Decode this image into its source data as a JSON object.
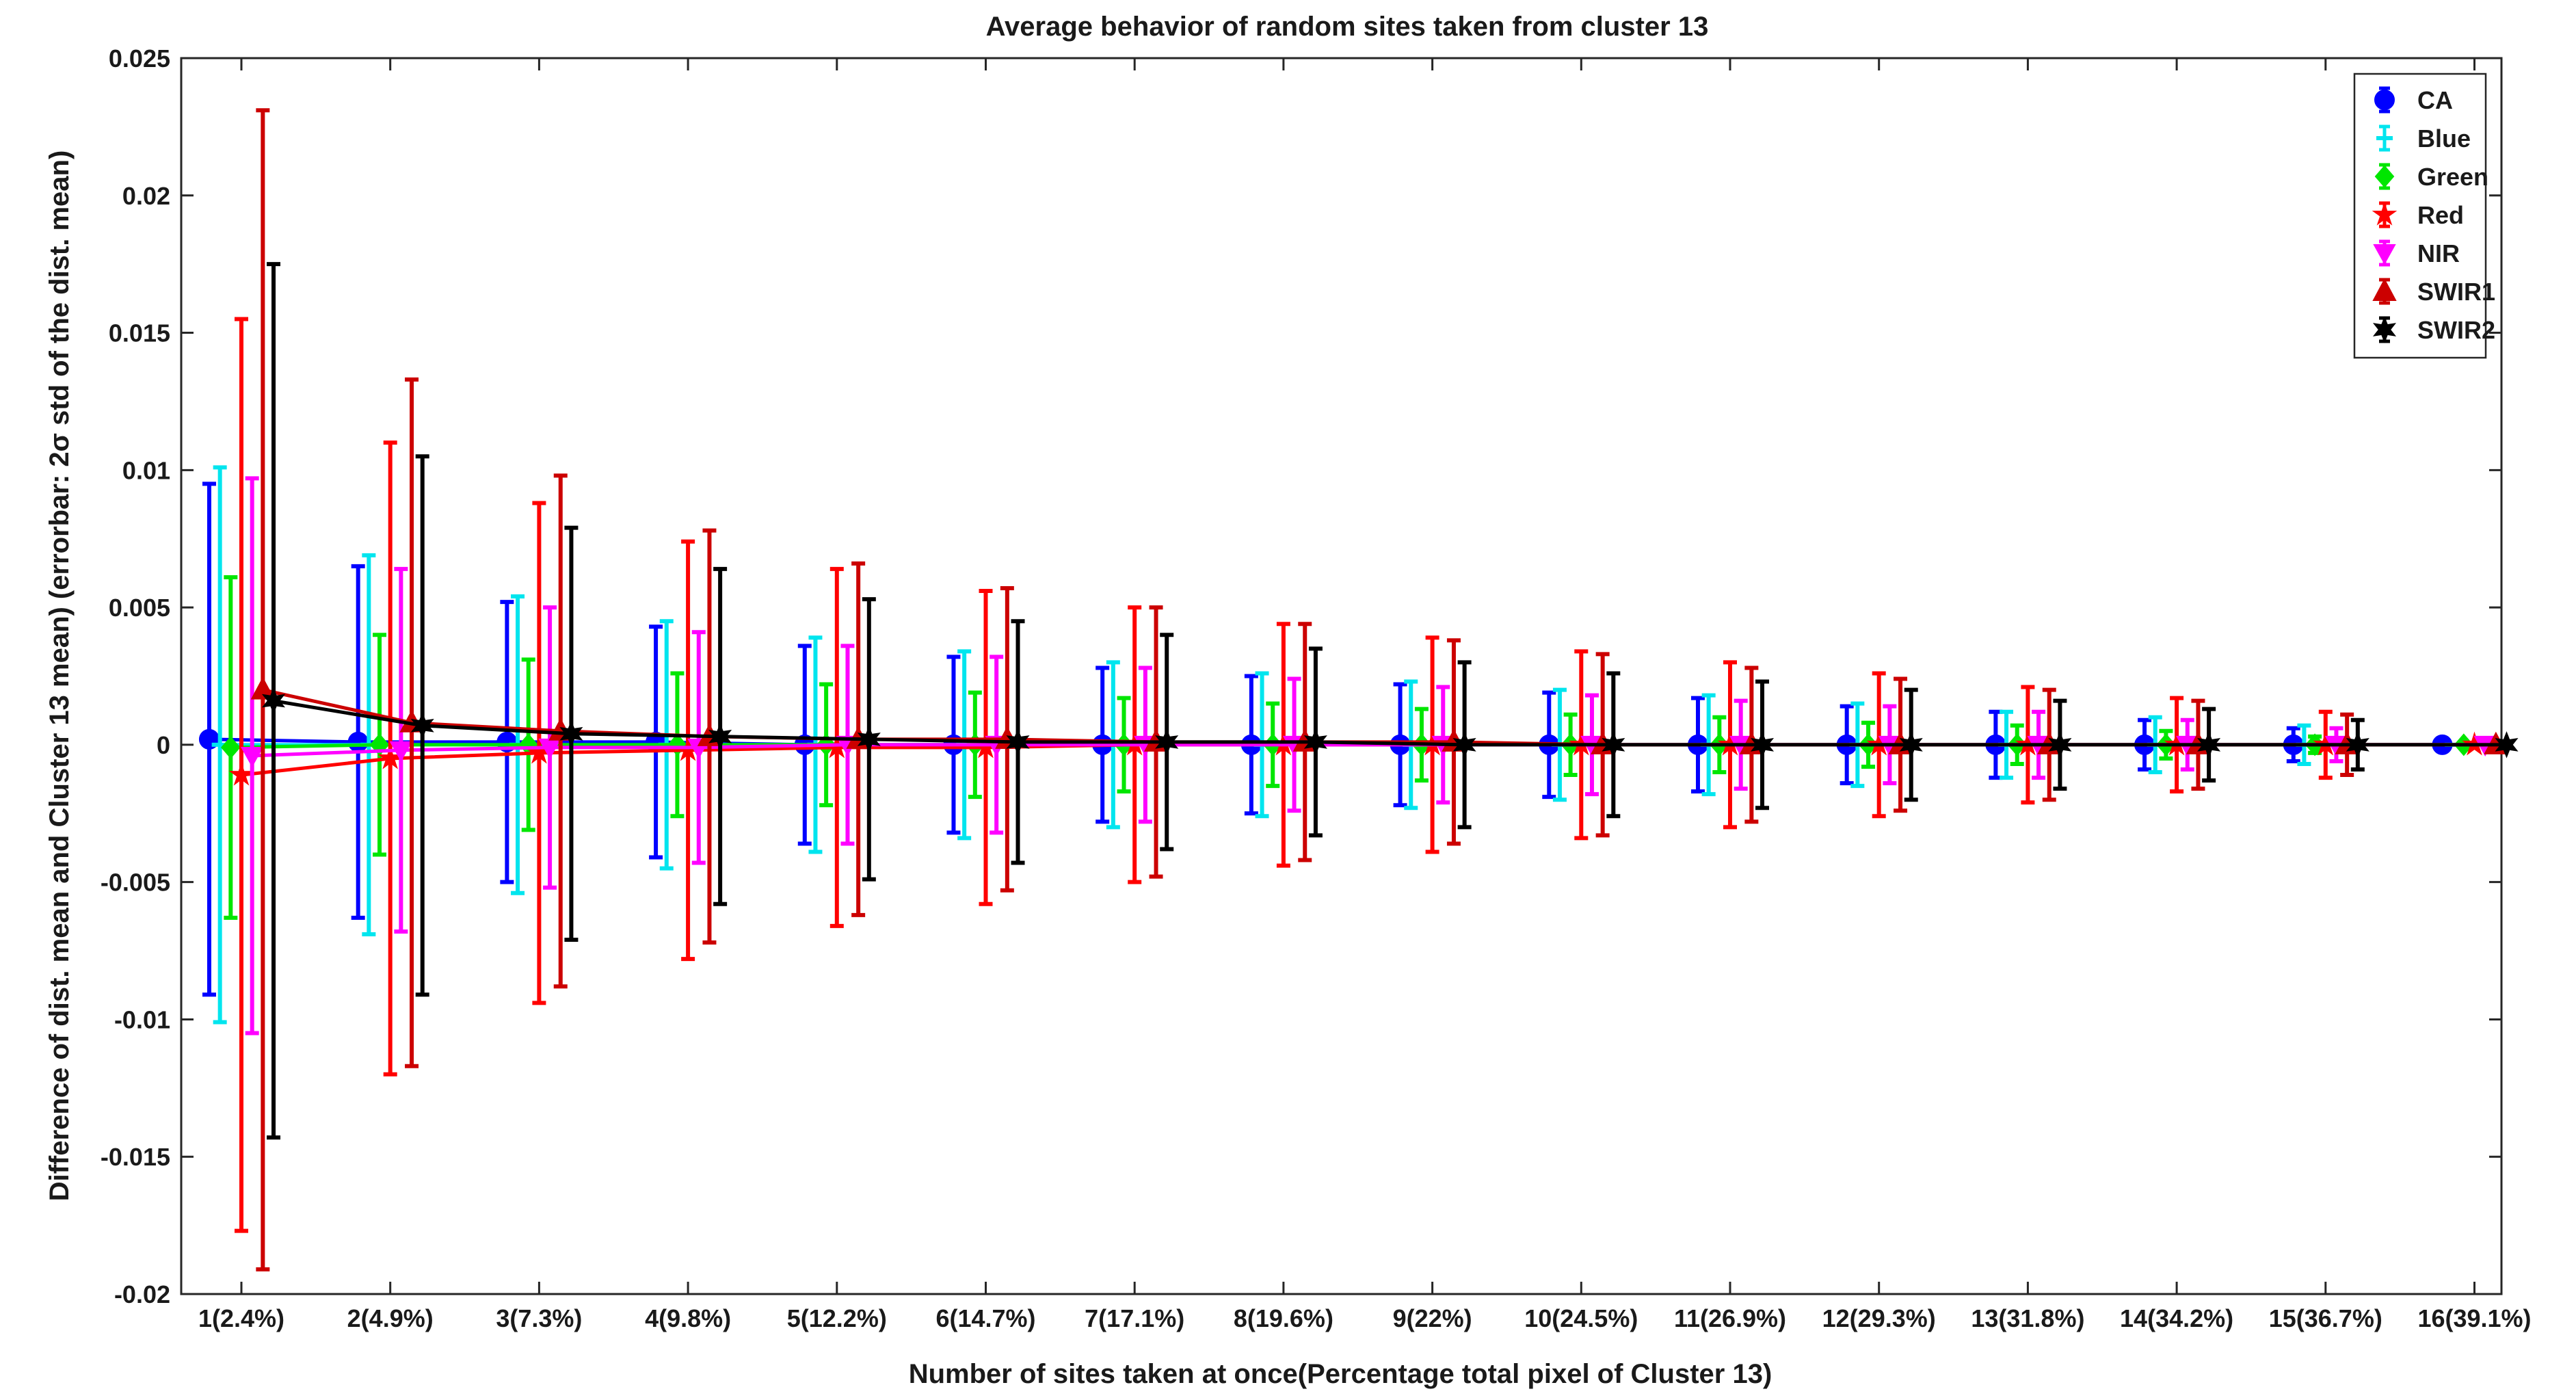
{
  "chart_data": {
    "type": "errorbar-line",
    "title": "Average behavior of random sites taken from cluster 13",
    "xlabel": "Number of sites taken at once(Percentage total pixel of Cluster 13)",
    "ylabel": "Difference of dist. mean and Cluster 13 mean) (errorbar: 2σ std of the dist. mean)",
    "ylim": [
      -0.02,
      0.025
    ],
    "yticks": [
      -0.02,
      -0.015,
      -0.01,
      -0.005,
      0,
      0.005,
      0.01,
      0.015,
      0.02,
      0.025
    ],
    "ytick_labels": [
      "-0.02",
      "-0.015",
      "-0.01",
      "-0.005",
      "0",
      "0.005",
      "0.01",
      "0.015",
      "0.02",
      "0.025"
    ],
    "categories": [
      "1(2.4%)",
      "2(4.9%)",
      "3(7.3%)",
      "4(9.8%)",
      "5(12.2%)",
      "6(14.7%)",
      "7(17.1%)",
      "8(19.6%)",
      "9(22%)",
      "10(24.5%)",
      "11(26.9%)",
      "12(29.3%)",
      "13(31.8%)",
      "14(34.2%)",
      "15(36.7%)",
      "16(39.1%)"
    ],
    "legend_position": "top-right",
    "grid": false,
    "series": [
      {
        "name": "CA",
        "color": "#0000ff",
        "marker": "circle",
        "offset": -0.24,
        "values": [
          0.0002,
          0.0001,
          0.0001,
          0.0001,
          0.0,
          0.0,
          0.0,
          0.0,
          0.0,
          0.0,
          0.0,
          0.0,
          0.0,
          0.0,
          0.0,
          0.0
        ],
        "err": [
          0.0093,
          0.0064,
          0.0051,
          0.0042,
          0.0036,
          0.0032,
          0.0028,
          0.0025,
          0.0022,
          0.0019,
          0.0017,
          0.0014,
          0.0012,
          0.0009,
          0.0006,
          0.0
        ]
      },
      {
        "name": "Blue",
        "color": "#00e5ee",
        "marker": "dash",
        "offset": -0.16,
        "values": [
          0.0,
          0.0,
          0.0,
          0.0,
          0.0,
          0.0,
          0.0,
          0.0,
          0.0,
          0.0,
          0.0,
          0.0,
          0.0,
          0.0,
          0.0,
          0.0
        ],
        "err": [
          0.0101,
          0.0069,
          0.0054,
          0.0045,
          0.0039,
          0.0034,
          0.003,
          0.0026,
          0.0023,
          0.002,
          0.0018,
          0.0015,
          0.0012,
          0.001,
          0.0007,
          0.0
        ]
      },
      {
        "name": "Green",
        "color": "#00e600",
        "marker": "diamond",
        "offset": -0.08,
        "values": [
          -0.0001,
          0.0,
          0.0,
          0.0,
          0.0,
          0.0,
          0.0,
          0.0,
          0.0,
          0.0,
          0.0,
          0.0,
          0.0,
          0.0,
          0.0,
          0.0
        ],
        "err": [
          0.0062,
          0.004,
          0.0031,
          0.0026,
          0.0022,
          0.0019,
          0.0017,
          0.0015,
          0.0013,
          0.0011,
          0.001,
          0.0008,
          0.0007,
          0.0005,
          0.0003,
          0.0
        ]
      },
      {
        "name": "Red",
        "color": "#ff0000",
        "marker": "star",
        "offset": 0.0,
        "values": [
          -0.0011,
          -0.0005,
          -0.0003,
          -0.0002,
          -0.0001,
          -0.0001,
          0.0,
          0.0,
          0.0,
          0.0,
          0.0,
          0.0,
          0.0,
          0.0,
          0.0,
          0.0
        ],
        "err": [
          0.0166,
          0.0115,
          0.0091,
          0.0076,
          0.0065,
          0.0057,
          0.005,
          0.0044,
          0.0039,
          0.0034,
          0.003,
          0.0026,
          0.0021,
          0.0017,
          0.0012,
          0.0
        ]
      },
      {
        "name": "NIR",
        "color": "#ff00ff",
        "marker": "triangle-down",
        "offset": 0.08,
        "values": [
          -0.0004,
          -0.0002,
          -0.0001,
          -0.0001,
          0.0,
          0.0,
          0.0,
          0.0,
          0.0,
          0.0,
          0.0,
          0.0,
          0.0,
          0.0,
          0.0,
          0.0
        ],
        "err": [
          0.0101,
          0.0066,
          0.0051,
          0.0042,
          0.0036,
          0.0032,
          0.0028,
          0.0024,
          0.0021,
          0.0018,
          0.0016,
          0.0014,
          0.0012,
          0.0009,
          0.0006,
          0.0
        ]
      },
      {
        "name": "SWIR1",
        "color": "#cc0000",
        "marker": "triangle-up",
        "offset": 0.16,
        "values": [
          0.002,
          0.0008,
          0.0005,
          0.0003,
          0.0002,
          0.0002,
          0.0001,
          0.0001,
          0.0001,
          0.0,
          0.0,
          0.0,
          0.0,
          0.0,
          0.0,
          0.0
        ],
        "err": [
          0.0211,
          0.0125,
          0.0093,
          0.0075,
          0.0064,
          0.0055,
          0.0049,
          0.0043,
          0.0037,
          0.0033,
          0.0028,
          0.0024,
          0.002,
          0.0016,
          0.0011,
          0.0
        ]
      },
      {
        "name": "SWIR2",
        "color": "#000000",
        "marker": "hexagram",
        "offset": 0.24,
        "values": [
          0.0016,
          0.0007,
          0.0004,
          0.0003,
          0.0002,
          0.0001,
          0.0001,
          0.0001,
          0.0,
          0.0,
          0.0,
          0.0,
          0.0,
          0.0,
          0.0,
          0.0
        ],
        "err": [
          0.0159,
          0.0098,
          0.0075,
          0.0061,
          0.0051,
          0.0044,
          0.0039,
          0.0034,
          0.003,
          0.0026,
          0.0023,
          0.002,
          0.0016,
          0.0013,
          0.0009,
          0.0
        ]
      }
    ]
  }
}
